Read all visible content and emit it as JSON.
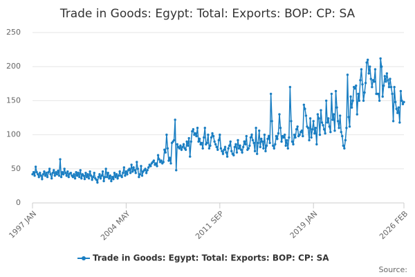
{
  "chart_data": {
    "type": "line",
    "title": "Trade in Goods: Egypt: Total: Exports: BOP: CP: SA",
    "source": "Source:",
    "categories": [
      "1997 JAN",
      null,
      null,
      null,
      null,
      null,
      null,
      null,
      null,
      null,
      null,
      null,
      null,
      null,
      null,
      null,
      null,
      null,
      null,
      null,
      null,
      null,
      null,
      null,
      null,
      null,
      null,
      null,
      null,
      null,
      null,
      null,
      null,
      null,
      null,
      null,
      null,
      null,
      null,
      null,
      null,
      null,
      null,
      null,
      null,
      null,
      null,
      null,
      null,
      null,
      null,
      null,
      null,
      null,
      null,
      null,
      null,
      null,
      null,
      null,
      null,
      null,
      null,
      null,
      null,
      null,
      null,
      null,
      null,
      null,
      null,
      null,
      null,
      null,
      null,
      null,
      null,
      null,
      null,
      null,
      null,
      null,
      null,
      null,
      null,
      null,
      null,
      null,
      "2004 MAY",
      null,
      null,
      null,
      null,
      null,
      null,
      null,
      null,
      null,
      null,
      null,
      null,
      null,
      null,
      null,
      null,
      null,
      null,
      null,
      null,
      null,
      null,
      null,
      null,
      null,
      null,
      null,
      null,
      null,
      null,
      null,
      null,
      null,
      null,
      null,
      null,
      null,
      null,
      null,
      null,
      null,
      null,
      null,
      null,
      null,
      null,
      null,
      null,
      null,
      null,
      null,
      null,
      null,
      null,
      null,
      null,
      null,
      null,
      null,
      null,
      null,
      null,
      null,
      null,
      null,
      null,
      null,
      null,
      null,
      null,
      null,
      null,
      null,
      null,
      null,
      null,
      null,
      null,
      null,
      null,
      null,
      null,
      null,
      null,
      null,
      null,
      null,
      "2011 SEP",
      null,
      null,
      null,
      null,
      null,
      null,
      null,
      null,
      null,
      null,
      null,
      null,
      null,
      null,
      null,
      null,
      null,
      null,
      null,
      null,
      null,
      null,
      null,
      null,
      null,
      null,
      null,
      null,
      null,
      null,
      null,
      null,
      null,
      null,
      null,
      null,
      null,
      null,
      null,
      null,
      null,
      null,
      null,
      null,
      null,
      null,
      null,
      null,
      null,
      null,
      null,
      null,
      null,
      null,
      null,
      null,
      null,
      null,
      null,
      null,
      null,
      null,
      null,
      null,
      null,
      null,
      null,
      null,
      null,
      null,
      null,
      null,
      null,
      null,
      null,
      null,
      null,
      null,
      null,
      null,
      null,
      null,
      null,
      null,
      null,
      null,
      null,
      "2019 JAN",
      null,
      null,
      null,
      null,
      null,
      null,
      null,
      null,
      null,
      null,
      null,
      null,
      null,
      null,
      null,
      null,
      null,
      null,
      null,
      null,
      null,
      null,
      null,
      null,
      null,
      null,
      null,
      null,
      null,
      null,
      null,
      null,
      null,
      null,
      null,
      null,
      null,
      null,
      null,
      null,
      null,
      null,
      null,
      null,
      null,
      null,
      null,
      null,
      null,
      null,
      null,
      null,
      null,
      null,
      null,
      null,
      null,
      null,
      null,
      null,
      null,
      null,
      null,
      null,
      null,
      null,
      null,
      null,
      null,
      null,
      null,
      null,
      null,
      null,
      null,
      null,
      null,
      null,
      null,
      null,
      null,
      null,
      null,
      null,
      "2026 FEB"
    ],
    "series": [
      {
        "name": "Trade in Goods: Egypt: Total: Exports: BOP: CP: SA",
        "color": "#1a7ec2",
        "values": [
          42,
          45,
          40,
          53,
          45,
          42,
          38,
          44,
          40,
          35,
          42,
          46,
          40,
          44,
          38,
          45,
          50,
          42,
          36,
          44,
          48,
          40,
          45,
          42,
          47,
          40,
          64,
          38,
          45,
          42,
          50,
          44,
          40,
          46,
          38,
          43,
          44,
          40,
          38,
          42,
          36,
          45,
          40,
          44,
          38,
          48,
          36,
          42,
          40,
          35,
          44,
          38,
          42,
          36,
          46,
          40,
          34,
          38,
          44,
          36,
          34,
          30,
          38,
          42,
          36,
          40,
          46,
          32,
          38,
          50,
          38,
          44,
          36,
          40,
          32,
          38,
          35,
          44,
          38,
          42,
          36,
          40,
          46,
          40,
          38,
          44,
          52,
          40,
          46,
          42,
          48,
          50,
          44,
          56,
          46,
          52,
          48,
          44,
          60,
          50,
          38,
          42,
          54,
          40,
          46,
          48,
          50,
          44,
          48,
          52,
          56,
          54,
          58,
          60,
          62,
          56,
          58,
          54,
          70,
          64,
          60,
          62,
          58,
          60,
          78,
          74,
          100,
          80,
          62,
          66,
          58,
          88,
          90,
          92,
          122,
          48,
          86,
          82,
          80,
          84,
          78,
          82,
          86,
          80,
          78,
          90,
          84,
          95,
          68,
          90,
          105,
          108,
          100,
          102,
          98,
          110,
          90,
          94,
          86,
          88,
          80,
          96,
          110,
          86,
          88,
          100,
          80,
          84,
          96,
          102,
          98,
          90,
          86,
          82,
          78,
          92,
          100,
          80,
          76,
          72,
          78,
          82,
          74,
          68,
          80,
          84,
          90,
          76,
          72,
          70,
          82,
          86,
          74,
          92,
          80,
          84,
          78,
          74,
          82,
          90,
          86,
          98,
          78,
          80,
          84,
          96,
          100,
          92,
          88,
          76,
          110,
          72,
          88,
          106,
          82,
          94,
          90,
          80,
          100,
          76,
          84,
          94,
          98,
          88,
          160,
          120,
          84,
          80,
          86,
          98,
          94,
          102,
          130,
          110,
          90,
          98,
          96,
          100,
          84,
          92,
          80,
          96,
          170,
          120,
          90,
          86,
          100,
          96,
          108,
          112,
          98,
          100,
          104,
          106,
          98,
          144,
          138,
          128,
          112,
          110,
          92,
          124,
          96,
          108,
          120,
          102,
          110,
          86,
          130,
          124,
          100,
          136,
          118,
          114,
          108,
          102,
          150,
          118,
          124,
          112,
          104,
          160,
          122,
          130,
          106,
          164,
          140,
          120,
          110,
          128,
          104,
          98,
          84,
          80,
          92,
          110,
          188,
          126,
          112,
          156,
          140,
          150,
          170,
          168,
          172,
          130,
          160,
          150,
          180,
          196,
          174,
          150,
          162,
          176,
          206,
          210,
          190,
          200,
          182,
          170,
          180,
          178,
          196,
          160,
          160,
          160,
          150,
          212,
          200,
          156,
          172,
          186,
          178,
          190,
          180,
          170,
          182,
          170,
          160,
          120,
          170,
          148,
          138,
          132,
          140,
          118,
          164,
          150,
          145,
          148
        ]
      }
    ],
    "ylim": [
      0,
      250
    ],
    "yticks": [
      0,
      50,
      100,
      150,
      200,
      250
    ],
    "grid": true
  }
}
